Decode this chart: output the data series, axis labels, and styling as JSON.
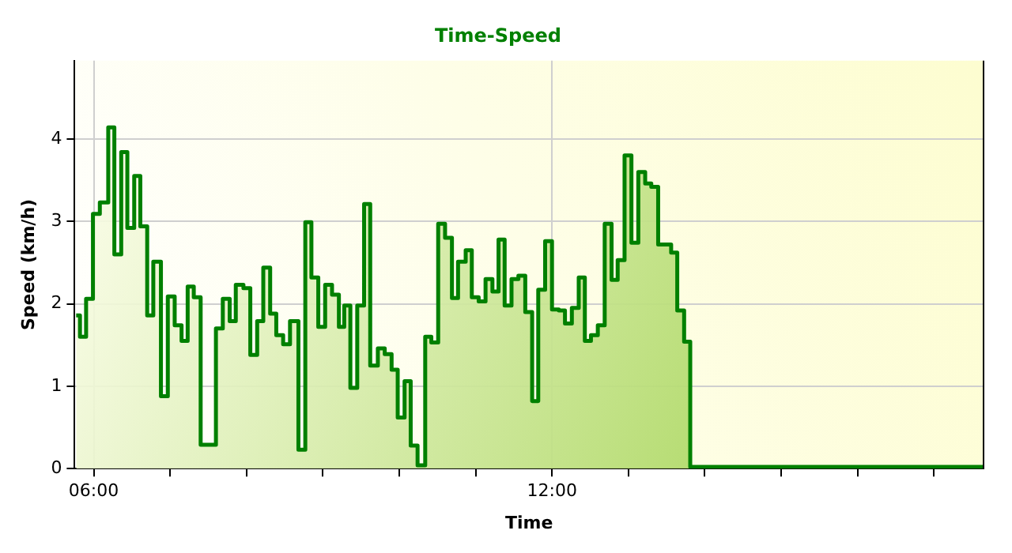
{
  "chart_data": {
    "type": "area",
    "title": "Time-Speed",
    "xlabel": "Time",
    "ylabel": "Speed (km/h)",
    "x": [
      5.77,
      5.82,
      5.82,
      5.9,
      5.9,
      5.99,
      5.99,
      6.08,
      6.08,
      6.19,
      6.19,
      6.27,
      6.27,
      6.36,
      6.36,
      6.44,
      6.44,
      6.53,
      6.53,
      6.61,
      6.61,
      6.7,
      6.7,
      6.78,
      6.78,
      6.88,
      6.88,
      6.97,
      6.97,
      7.06,
      7.06,
      7.15,
      7.15,
      7.23,
      7.23,
      7.31,
      7.31,
      7.4,
      7.4,
      7.6,
      7.6,
      7.69,
      7.69,
      7.78,
      7.78,
      7.86,
      7.86,
      7.96,
      7.96,
      8.05,
      8.05,
      8.14,
      8.14,
      8.22,
      8.22,
      8.31,
      8.31,
      8.39,
      8.39,
      8.48,
      8.48,
      8.57,
      8.57,
      8.68,
      8.68,
      8.77,
      8.77,
      8.85,
      8.85,
      8.94,
      8.94,
      9.03,
      9.03,
      9.12,
      9.12,
      9.21,
      9.21,
      9.28,
      9.28,
      9.36,
      9.36,
      9.45,
      9.45,
      9.54,
      9.54,
      9.62,
      9.62,
      9.72,
      9.72,
      9.81,
      9.81,
      9.9,
      9.9,
      9.98,
      9.98,
      10.07,
      10.07,
      10.15,
      10.15,
      10.24,
      10.24,
      10.34,
      10.34,
      10.42,
      10.42,
      10.51,
      10.51,
      10.6,
      10.6,
      10.69,
      10.69,
      10.77,
      10.77,
      10.87,
      10.87,
      10.95,
      10.95,
      11.04,
      11.04,
      11.13,
      11.13,
      11.22,
      11.22,
      11.3,
      11.3,
      11.38,
      11.38,
      11.47,
      11.47,
      11.56,
      11.56,
      11.65,
      11.65,
      11.74,
      11.74,
      11.82,
      11.82,
      11.91,
      11.91,
      12.0,
      12.0,
      12.09,
      12.09,
      12.17,
      12.17,
      12.26,
      12.26,
      12.35,
      12.35,
      12.43,
      12.43,
      12.51,
      12.51,
      12.6,
      12.6,
      12.69,
      12.69,
      12.78,
      12.78,
      12.86,
      12.86,
      12.95,
      12.95,
      13.04,
      13.04,
      13.13,
      13.13,
      13.22,
      13.22,
      13.3,
      13.3,
      13.39,
      13.39,
      13.56,
      13.56,
      13.64,
      13.64,
      13.73,
      13.73,
      13.81,
      13.81,
      17.65
    ],
    "series": [
      {
        "color": "#008000",
        "values": [
          1.86,
          1.86,
          1.6,
          1.6,
          2.06,
          2.06,
          3.09,
          3.09,
          3.23,
          3.23,
          4.14,
          4.14,
          2.6,
          2.6,
          3.84,
          3.84,
          2.92,
          2.92,
          3.55,
          3.55,
          2.94,
          2.94,
          1.86,
          1.86,
          2.51,
          2.51,
          0.88,
          0.88,
          2.09,
          2.09,
          1.74,
          1.74,
          1.55,
          1.55,
          2.21,
          2.21,
          2.08,
          2.08,
          0.29,
          0.29,
          1.7,
          1.7,
          2.06,
          2.06,
          1.79,
          1.79,
          2.23,
          2.23,
          2.19,
          2.19,
          1.38,
          1.38,
          1.79,
          1.79,
          2.44,
          2.44,
          1.88,
          1.88,
          1.62,
          1.62,
          1.51,
          1.51,
          1.79,
          1.79,
          0.23,
          0.23,
          2.99,
          2.99,
          2.32,
          2.32,
          1.72,
          1.72,
          2.23,
          2.23,
          2.11,
          2.11,
          1.72,
          1.72,
          1.98,
          1.98,
          0.98,
          0.98,
          1.98,
          1.98,
          3.21,
          3.21,
          1.25,
          1.25,
          1.46,
          1.46,
          1.39,
          1.39,
          1.2,
          1.2,
          0.62,
          0.62,
          1.06,
          1.06,
          0.28,
          0.28,
          0.04,
          0.04,
          1.6,
          1.6,
          1.53,
          1.53,
          2.97,
          2.97,
          2.8,
          2.8,
          2.07,
          2.07,
          2.51,
          2.51,
          2.65,
          2.65,
          2.08,
          2.08,
          2.03,
          2.03,
          2.3,
          2.3,
          2.15,
          2.15,
          2.78,
          2.78,
          1.98,
          1.98,
          2.3,
          2.3,
          2.34,
          2.34,
          1.9,
          1.9,
          0.82,
          0.82,
          2.17,
          2.17,
          2.76,
          2.76,
          1.93,
          1.93,
          1.92,
          1.92,
          1.76,
          1.76,
          1.95,
          1.95,
          2.32,
          2.32,
          1.55,
          1.55,
          1.62,
          1.62,
          1.74,
          1.74,
          2.97,
          2.97,
          2.29,
          2.29,
          2.53,
          2.53,
          3.8,
          3.8,
          2.74,
          2.74,
          3.6,
          3.6,
          3.46,
          3.46,
          3.42,
          3.42,
          2.72,
          2.72,
          2.62,
          2.62,
          1.92,
          1.92,
          1.54,
          1.54,
          0.02,
          0.02
        ]
      }
    ],
    "xlim": [
      5.75,
      17.65
    ],
    "xticks": [
      {
        "value": 6,
        "label": "06:00"
      },
      {
        "value": 7,
        "label": null
      },
      {
        "value": 8,
        "label": null
      },
      {
        "value": 9,
        "label": null
      },
      {
        "value": 10,
        "label": null
      },
      {
        "value": 11,
        "label": null
      },
      {
        "value": 12,
        "label": "12:00"
      },
      {
        "value": 13,
        "label": null
      },
      {
        "value": 14,
        "label": null
      },
      {
        "value": 15,
        "label": null
      },
      {
        "value": 16,
        "label": null
      },
      {
        "value": 17,
        "label": null
      }
    ],
    "ylim": [
      0,
      4.95
    ],
    "yticks": [
      0,
      1,
      2,
      3,
      4
    ],
    "grid": true,
    "legend": false
  }
}
